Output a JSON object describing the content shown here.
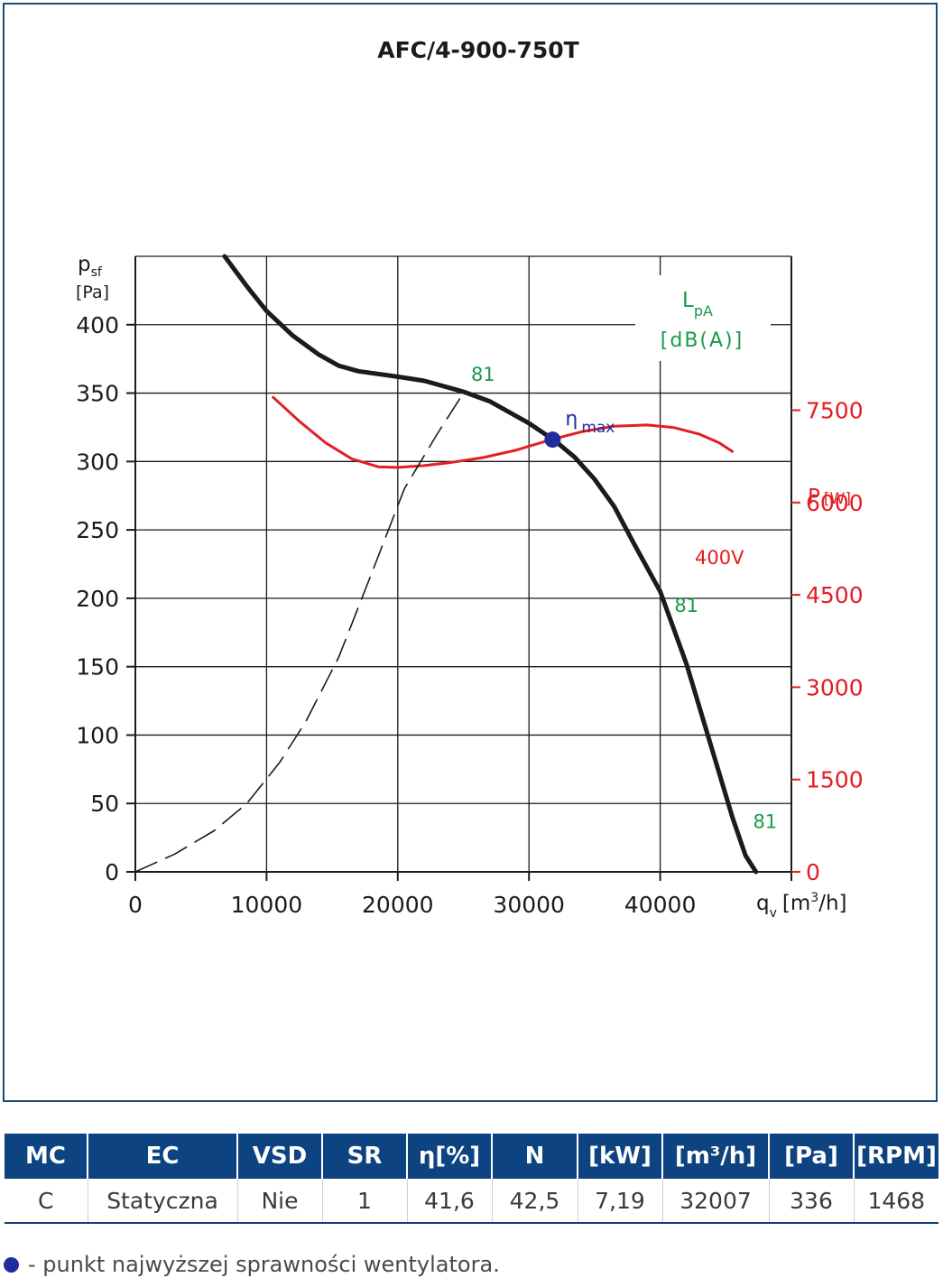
{
  "chart_data": {
    "type": "line",
    "title": "AFC/4-900-750T",
    "xlabel": "qv [m3/h]",
    "ylabel": "psf [Pa]",
    "y2label": "P [W]",
    "noise_label": "LpA [dB(A)]",
    "xlim": [
      0,
      50000
    ],
    "ylim": [
      0,
      450
    ],
    "y2lim": [
      0,
      10000
    ],
    "x_ticks": [
      0,
      10000,
      20000,
      30000,
      40000
    ],
    "y_ticks": [
      0,
      50,
      100,
      150,
      200,
      250,
      300,
      350,
      400
    ],
    "y2_ticks": [
      0,
      1500,
      3000,
      4500,
      6000,
      7500
    ],
    "grid": true,
    "colors": {
      "pressure": "#1b1b1b",
      "power": "#e31e24",
      "noise": "#1a9a4a",
      "eta": "#1f2d9c",
      "axis": "#1b1b1b"
    },
    "series": [
      {
        "name": "psf",
        "axis": "left",
        "x": [
          6800,
          8500,
          10000,
          12000,
          14000,
          15500,
          17000,
          20000,
          22000,
          25000,
          27000,
          30000,
          32000,
          33500,
          35000,
          36500,
          38000,
          40000,
          42000,
          44000,
          45500,
          46500,
          47300
        ],
        "y": [
          450,
          428,
          410,
          392,
          378,
          370,
          366,
          362,
          359,
          351,
          344,
          328,
          315,
          303,
          287,
          267,
          240,
          205,
          152,
          88,
          40,
          12,
          0
        ]
      },
      {
        "name": "400V",
        "axis": "right",
        "x": [
          10500,
          12500,
          14500,
          16500,
          18500,
          20000,
          22000,
          24000,
          26500,
          29000,
          31500,
          34000,
          36500,
          39000,
          41000,
          43000,
          44500,
          45500
        ],
        "y": [
          7710,
          7320,
          6970,
          6710,
          6580,
          6570,
          6600,
          6650,
          6730,
          6850,
          7010,
          7150,
          7240,
          7260,
          7220,
          7110,
          6970,
          6830
        ]
      },
      {
        "name": "81",
        "axis": "left",
        "style": "dashed",
        "x": [
          0,
          3000,
          6000,
          8500,
          11000,
          13000,
          15500,
          18000,
          20500,
          23000,
          25000
        ],
        "y": [
          0,
          13,
          30,
          50,
          80,
          110,
          157,
          218,
          280,
          320,
          350
        ]
      }
    ],
    "eta_max": {
      "label": "η",
      "sub": "max",
      "x": 31800,
      "y": 316
    },
    "noise_labels": [
      {
        "text": "81",
        "x": 26500,
        "y": 359
      },
      {
        "text": "81",
        "x": 42000,
        "y": 190
      },
      {
        "text": "81",
        "x": 48000,
        "y": 32
      }
    ],
    "power_curve_label": "400V"
  },
  "table": {
    "headers": [
      "MC",
      "EC",
      "VSD",
      "SR",
      "η[%]",
      "N",
      "[kW]",
      "[m³/h]",
      "[Pa]",
      "[RPM]"
    ],
    "row": [
      "C",
      "Statyczna",
      "Nie",
      "1",
      "41,6",
      "42,5",
      "7,19",
      "32007",
      "336",
      "1468"
    ]
  },
  "legend_text": "- punkt najwyższej sprawności wentylatora."
}
